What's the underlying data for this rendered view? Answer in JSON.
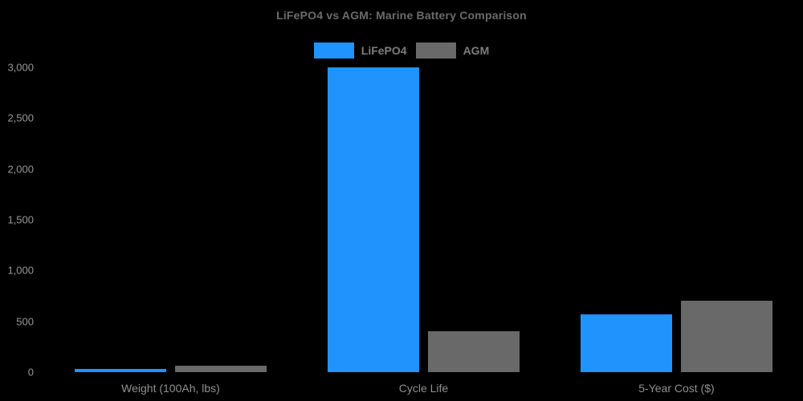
{
  "chart_data": {
    "type": "bar",
    "title": "LiFePO4 vs AGM: Marine Battery Comparison",
    "categories": [
      "Weight (100Ah, lbs)",
      "Cycle Life",
      "5-Year Cost ($)"
    ],
    "series": [
      {
        "name": "LiFePO4",
        "color": "#2193FC",
        "values": [
          30,
          3000,
          570
        ]
      },
      {
        "name": "AGM",
        "color": "#696969",
        "values": [
          65,
          400,
          700
        ]
      }
    ],
    "xlabel": "",
    "ylabel": "",
    "ylim": [
      0,
      3000
    ],
    "yticks": [
      0,
      500,
      1000,
      1500,
      2000,
      2500,
      3000
    ],
    "ytick_labels": [
      "0",
      "500",
      "1,000",
      "1,500",
      "2,000",
      "2,500",
      "3,000"
    ],
    "grid": false,
    "legend_position": "top-center",
    "background": "#000000"
  }
}
